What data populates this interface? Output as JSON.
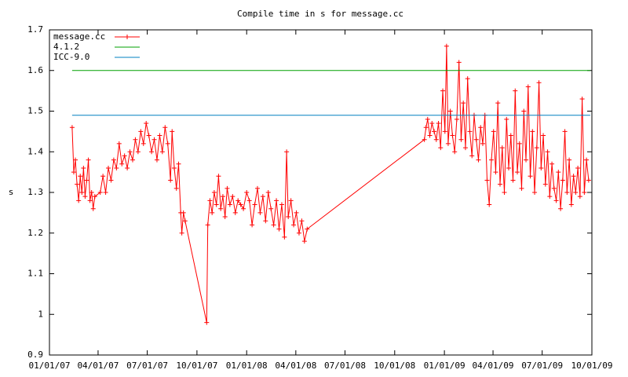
{
  "chart_data": {
    "type": "line",
    "title": "Compile time in s for message.cc",
    "ylabel": "s",
    "xlim": [
      "2007-01-01",
      "2009-10-01"
    ],
    "xticks": [
      {
        "value": "2007-01-01",
        "label": "01/01/07"
      },
      {
        "value": "2007-04-01",
        "label": "04/01/07"
      },
      {
        "value": "2007-07-01",
        "label": "07/01/07"
      },
      {
        "value": "2007-10-01",
        "label": "10/01/07"
      },
      {
        "value": "2008-01-01",
        "label": "01/01/08"
      },
      {
        "value": "2008-04-01",
        "label": "04/01/08"
      },
      {
        "value": "2008-07-01",
        "label": "07/01/08"
      },
      {
        "value": "2008-10-01",
        "label": "10/01/08"
      },
      {
        "value": "2009-01-01",
        "label": "01/01/09"
      },
      {
        "value": "2009-04-01",
        "label": "04/01/09"
      },
      {
        "value": "2009-07-01",
        "label": "07/01/09"
      },
      {
        "value": "2009-10-01",
        "label": "10/01/09"
      }
    ],
    "ylim": [
      0.9,
      1.7
    ],
    "yticks": [
      0.9,
      1,
      1.1,
      1.2,
      1.3,
      1.4,
      1.5,
      1.6,
      1.7
    ],
    "legend": "top-left",
    "series": [
      {
        "name": "message.cc",
        "color": "#ff0000",
        "marker": "plus",
        "x": [
          "2007-02-12",
          "2007-02-15",
          "2007-02-18",
          "2007-02-21",
          "2007-02-24",
          "2007-02-27",
          "2007-03-02",
          "2007-03-05",
          "2007-03-08",
          "2007-03-11",
          "2007-03-14",
          "2007-03-17",
          "2007-03-20",
          "2007-03-23",
          "2007-03-26",
          "2007-04-05",
          "2007-04-10",
          "2007-04-15",
          "2007-04-20",
          "2007-04-25",
          "2007-04-30",
          "2007-05-05",
          "2007-05-10",
          "2007-05-15",
          "2007-05-20",
          "2007-05-25",
          "2007-05-30",
          "2007-06-04",
          "2007-06-09",
          "2007-06-14",
          "2007-06-19",
          "2007-06-24",
          "2007-06-29",
          "2007-07-04",
          "2007-07-09",
          "2007-07-14",
          "2007-07-19",
          "2007-07-24",
          "2007-07-29",
          "2007-08-03",
          "2007-08-08",
          "2007-08-13",
          "2007-08-16",
          "2007-08-20",
          "2007-08-24",
          "2007-08-28",
          "2007-09-01",
          "2007-09-03",
          "2007-09-06",
          "2007-09-09",
          "2007-10-19",
          "2007-10-21",
          "2007-10-25",
          "2007-10-29",
          "2007-11-02",
          "2007-11-06",
          "2007-11-10",
          "2007-11-14",
          "2007-11-18",
          "2007-11-22",
          "2007-11-26",
          "2007-12-01",
          "2007-12-06",
          "2007-12-11",
          "2007-12-16",
          "2007-12-21",
          "2007-12-26",
          "2008-01-01",
          "2008-01-06",
          "2008-01-11",
          "2008-01-16",
          "2008-01-21",
          "2008-01-26",
          "2008-01-31",
          "2008-02-05",
          "2008-02-10",
          "2008-02-15",
          "2008-02-20",
          "2008-02-25",
          "2008-03-01",
          "2008-03-06",
          "2008-03-11",
          "2008-03-15",
          "2008-03-18",
          "2008-03-23",
          "2008-03-28",
          "2008-04-02",
          "2008-04-07",
          "2008-04-12",
          "2008-04-17",
          "2008-04-22",
          "2008-11-25",
          "2008-11-28",
          "2008-12-01",
          "2008-12-05",
          "2008-12-09",
          "2008-12-13",
          "2008-12-17",
          "2008-12-21",
          "2008-12-25",
          "2008-12-29",
          "2009-01-02",
          "2009-01-05",
          "2009-01-08",
          "2009-01-12",
          "2009-01-16",
          "2009-01-20",
          "2009-01-24",
          "2009-01-28",
          "2009-02-01",
          "2009-02-05",
          "2009-02-09",
          "2009-02-13",
          "2009-02-17",
          "2009-02-21",
          "2009-02-25",
          "2009-03-01",
          "2009-03-05",
          "2009-03-09",
          "2009-03-13",
          "2009-03-17",
          "2009-03-21",
          "2009-03-25",
          "2009-03-29",
          "2009-04-02",
          "2009-04-06",
          "2009-04-10",
          "2009-04-14",
          "2009-04-18",
          "2009-04-22",
          "2009-04-26",
          "2009-04-30",
          "2009-05-04",
          "2009-05-08",
          "2009-05-12",
          "2009-05-16",
          "2009-05-20",
          "2009-05-24",
          "2009-05-28",
          "2009-06-01",
          "2009-06-05",
          "2009-06-09",
          "2009-06-13",
          "2009-06-17",
          "2009-06-21",
          "2009-06-25",
          "2009-06-29",
          "2009-07-03",
          "2009-07-07",
          "2009-07-11",
          "2009-07-15",
          "2009-07-19",
          "2009-07-23",
          "2009-07-27",
          "2009-07-31",
          "2009-08-04",
          "2009-08-08",
          "2009-08-12",
          "2009-08-16",
          "2009-08-20",
          "2009-08-24",
          "2009-08-28",
          "2009-09-01",
          "2009-09-05",
          "2009-09-09",
          "2009-09-13",
          "2009-09-17",
          "2009-09-21",
          "2009-09-25"
        ],
        "values": [
          1.46,
          1.35,
          1.38,
          1.32,
          1.28,
          1.34,
          1.3,
          1.36,
          1.29,
          1.33,
          1.38,
          1.28,
          1.3,
          1.26,
          1.29,
          1.3,
          1.34,
          1.3,
          1.36,
          1.33,
          1.38,
          1.36,
          1.42,
          1.37,
          1.39,
          1.36,
          1.4,
          1.38,
          1.43,
          1.4,
          1.45,
          1.42,
          1.47,
          1.44,
          1.4,
          1.43,
          1.38,
          1.44,
          1.4,
          1.46,
          1.42,
          1.33,
          1.45,
          1.36,
          1.31,
          1.37,
          1.25,
          1.2,
          1.25,
          1.23,
          0.98,
          1.22,
          1.28,
          1.25,
          1.3,
          1.27,
          1.34,
          1.26,
          1.29,
          1.24,
          1.31,
          1.27,
          1.29,
          1.25,
          1.28,
          1.27,
          1.26,
          1.3,
          1.28,
          1.22,
          1.27,
          1.31,
          1.25,
          1.29,
          1.23,
          1.3,
          1.26,
          1.22,
          1.28,
          1.21,
          1.27,
          1.19,
          1.4,
          1.24,
          1.28,
          1.22,
          1.25,
          1.2,
          1.23,
          1.18,
          1.21,
          1.43,
          1.46,
          1.48,
          1.44,
          1.47,
          1.45,
          1.43,
          1.47,
          1.41,
          1.55,
          1.45,
          1.66,
          1.42,
          1.5,
          1.44,
          1.4,
          1.48,
          1.62,
          1.43,
          1.52,
          1.41,
          1.58,
          1.45,
          1.39,
          1.49,
          1.43,
          1.38,
          1.46,
          1.42,
          1.49,
          1.33,
          1.27,
          1.38,
          1.45,
          1.35,
          1.52,
          1.32,
          1.41,
          1.3,
          1.48,
          1.36,
          1.44,
          1.33,
          1.55,
          1.35,
          1.42,
          1.31,
          1.5,
          1.38,
          1.56,
          1.34,
          1.45,
          1.3,
          1.41,
          1.57,
          1.36,
          1.44,
          1.32,
          1.4,
          1.29,
          1.37,
          1.31,
          1.28,
          1.35,
          1.26,
          1.33,
          1.45,
          1.3,
          1.38,
          1.27,
          1.34,
          1.3,
          1.36,
          1.29,
          1.53,
          1.3,
          1.38,
          1.33
        ]
      },
      {
        "name": "4.1.2",
        "color": "#00a000",
        "x": [
          "2007-02-12",
          "2009-09-28"
        ],
        "values": [
          1.6,
          1.6
        ]
      },
      {
        "name": "ICC-9.0",
        "color": "#0080c0",
        "x": [
          "2007-02-12",
          "2009-09-28"
        ],
        "values": [
          1.49,
          1.49
        ]
      }
    ]
  }
}
